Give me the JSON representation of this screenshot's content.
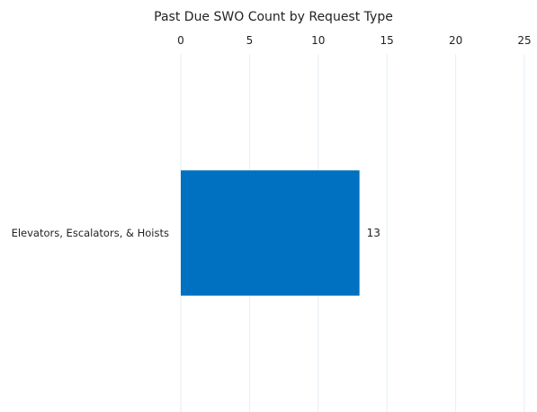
{
  "chart_data": {
    "type": "bar",
    "orientation": "horizontal",
    "title": "Past Due SWO Count by Request Type",
    "xlabel": "",
    "ylabel": "",
    "categories": [
      "Elevators, Escalators, & Hoists"
    ],
    "values": [
      13
    ],
    "data_labels": [
      "13"
    ],
    "xlim": [
      0,
      25
    ],
    "x_ticks": [
      0,
      5,
      10,
      15,
      20,
      25
    ],
    "x_axis_position": "top",
    "grid": true,
    "legend": "none",
    "bar_color": "#0070C0",
    "grid_color": "#E3EEF6"
  }
}
